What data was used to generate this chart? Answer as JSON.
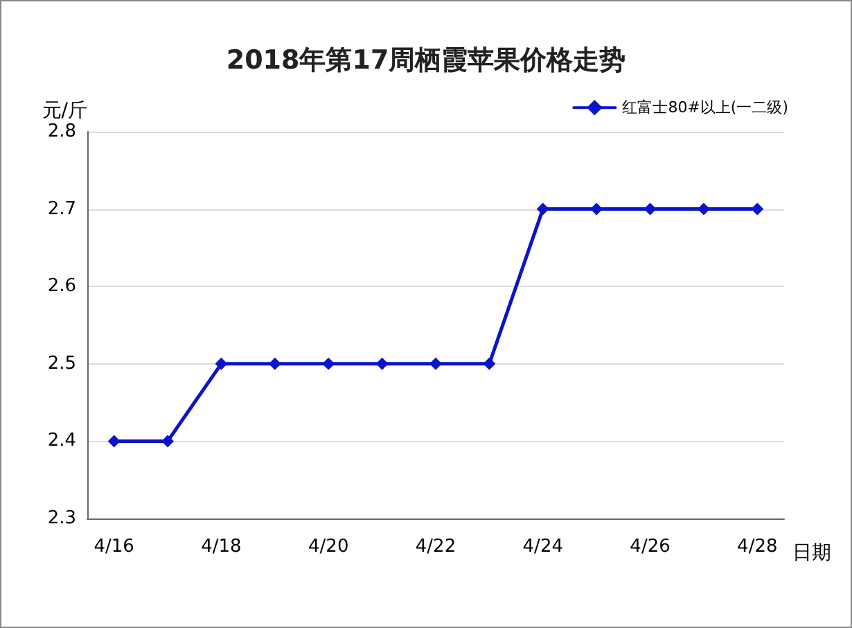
{
  "chart_data": {
    "type": "line",
    "title": "2018年第17周栖霞苹果价格走势",
    "xlabel": "日期",
    "ylabel": "元/斤",
    "categories": [
      "4/16",
      null,
      "4/18",
      null,
      "4/20",
      null,
      "4/22",
      null,
      "4/24",
      null,
      "4/26",
      null,
      "4/28"
    ],
    "series": [
      {
        "name": "红富士80#以上(一二级)",
        "color": "#0a14c8",
        "values": [
          2.4,
          2.4,
          2.5,
          2.5,
          2.5,
          2.5,
          2.5,
          2.5,
          2.7,
          2.7,
          2.7,
          2.7,
          2.7
        ]
      }
    ],
    "ylim": [
      2.3,
      2.8
    ],
    "yticks": [
      2.3,
      2.4,
      2.5,
      2.6,
      2.7,
      2.8
    ],
    "grid": "y",
    "legend": "top right",
    "marker": "diamond",
    "line_style": "solid"
  }
}
